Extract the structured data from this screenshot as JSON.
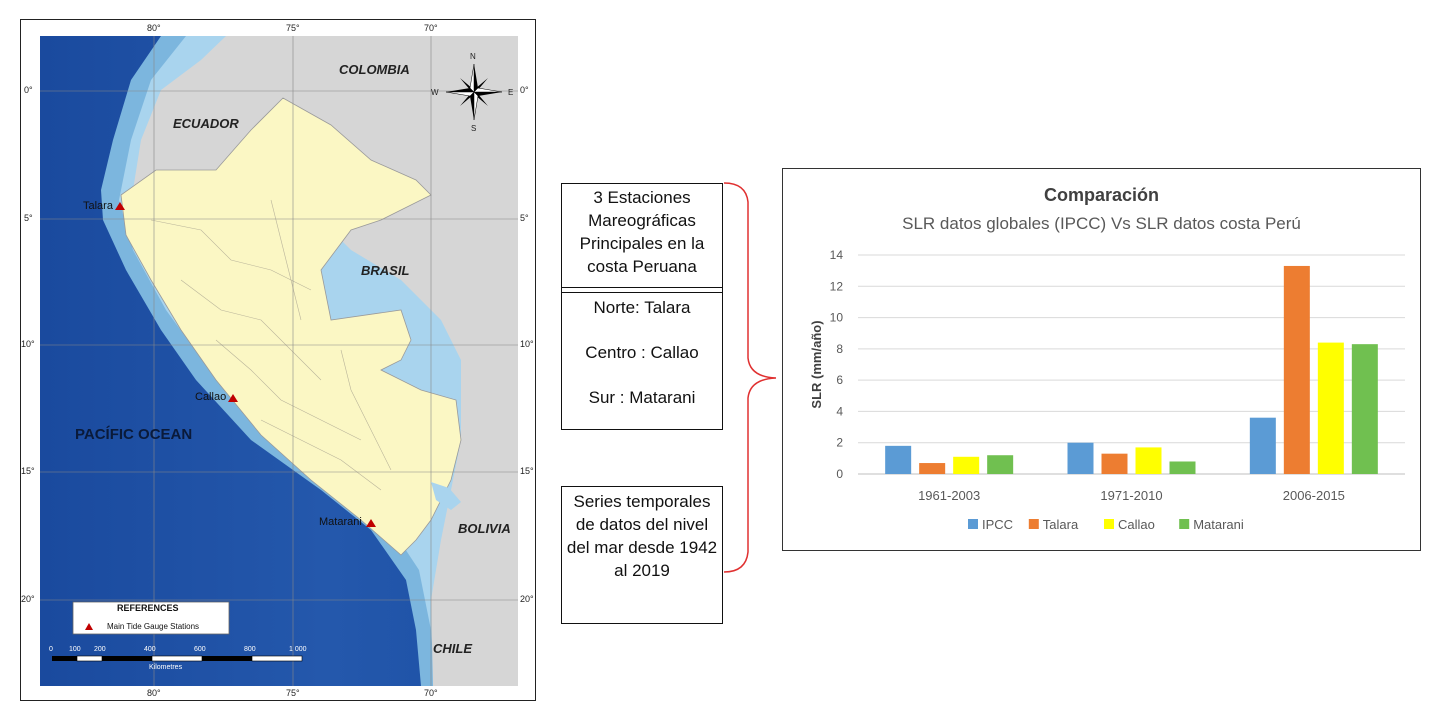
{
  "map": {
    "top_ticks": [
      "80°",
      "75°",
      "70°"
    ],
    "bottom_ticks": [
      "80°",
      "75°",
      "70°"
    ],
    "left_ticks": [
      "0°",
      "5°",
      "10°",
      "15°",
      "20°"
    ],
    "right_ticks": [
      "0°",
      "5°",
      "10°",
      "15°",
      "20°"
    ],
    "countries": {
      "colombia": "COLOMBIA",
      "ecuador": "ECUADOR",
      "brasil": "BRASIL",
      "bolivia": "BOLIVIA",
      "chile": "CHILE"
    },
    "ocean": "PACÍFIC OCEAN",
    "stations": [
      "Talara",
      "Callao",
      "Matarani"
    ],
    "compass": {
      "n": "N",
      "s": "S",
      "e": "E",
      "w": "W"
    },
    "legend": {
      "title": "REFERENCES",
      "item": "Main Tide Gauge Stations",
      "scale_ticks": [
        "0",
        "100",
        "200",
        "400",
        "600",
        "800",
        "1 000"
      ],
      "scale_unit": "Kilometres"
    },
    "colors": {
      "deep_ocean": "#1e50a2",
      "shelf": "#7fb8e0",
      "peru": "#fbf7c4",
      "neighbors": "#d7d7d7",
      "station_marker": "#c00000"
    }
  },
  "boxes": {
    "stations_title": "3 Estaciones Mareográficas Principales en la costa Peruana",
    "stations_lines": [
      "Norte: Talara",
      "Centro : Callao",
      "Sur : Matarani"
    ],
    "series": "Series temporales de datos del nivel del mar desde 1942 al 2019",
    "bracket_color": "#e03030"
  },
  "chart_data": {
    "type": "bar",
    "title": "Comparación",
    "subtitle": "SLR datos globales (IPCC) Vs SLR datos costa Perú",
    "ylabel": "SLR (mm/año)",
    "xlabel": "",
    "categories": [
      "1961-2003",
      "1971-2010",
      "2006-2015"
    ],
    "ylim": [
      0,
      14
    ],
    "yticks": [
      0,
      2,
      4,
      6,
      8,
      10,
      12,
      14
    ],
    "grid": true,
    "legend_position": "bottom",
    "series": [
      {
        "name": "IPCC",
        "color": "#5b9bd5",
        "values": [
          1.8,
          2.0,
          3.6
        ]
      },
      {
        "name": "Talara",
        "color": "#ed7d31",
        "values": [
          0.7,
          1.3,
          13.3
        ]
      },
      {
        "name": "Callao",
        "color": "#ffff00",
        "values": [
          1.1,
          1.7,
          8.4
        ]
      },
      {
        "name": "Matarani",
        "color": "#70c050",
        "values": [
          1.2,
          0.8,
          8.3
        ]
      }
    ]
  }
}
